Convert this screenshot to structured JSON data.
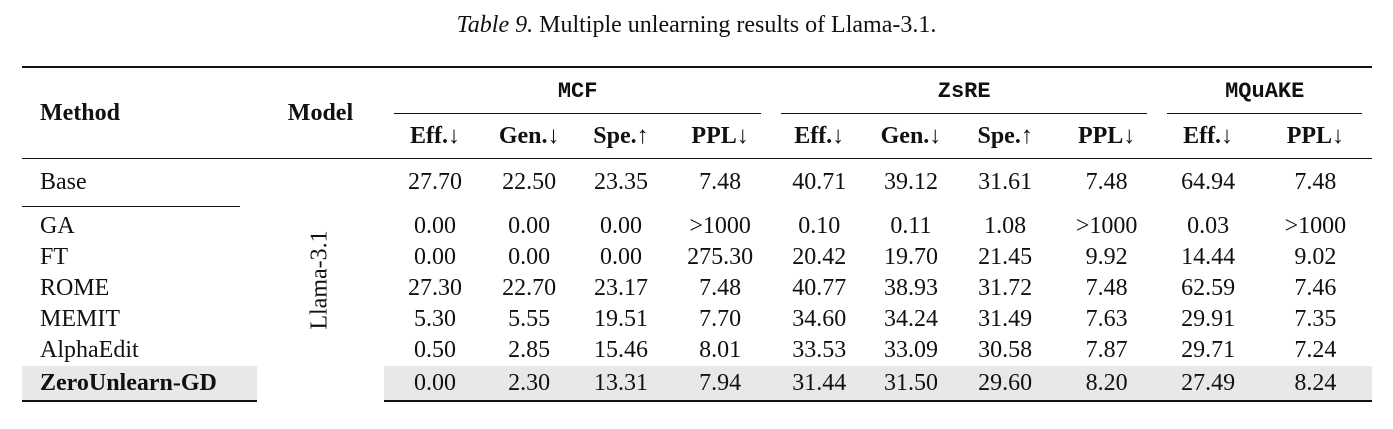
{
  "caption": {
    "label": "Table 9.",
    "text": "Multiple unlearning results of Llama-3.1."
  },
  "header": {
    "method": "Method",
    "model": "Model",
    "groups": [
      "MCF",
      "ZsRE",
      "MQuAKE"
    ],
    "sub": [
      "Eff.↓",
      "Gen.↓",
      "Spe.↑",
      "PPL↓",
      "Eff.↓",
      "Gen.↓",
      "Spe.↑",
      "PPL↓",
      "Eff.↓",
      "PPL↓"
    ]
  },
  "model_name": "Llama-3.1",
  "rows": [
    {
      "method": "Base",
      "values": [
        "27.70",
        "22.50",
        "23.35",
        "7.48",
        "40.71",
        "39.12",
        "31.61",
        "7.48",
        "64.94",
        "7.48"
      ]
    },
    {
      "method": "GA",
      "values": [
        "0.00",
        "0.00",
        "0.00",
        ">1000",
        "0.10",
        "0.11",
        "1.08",
        ">1000",
        "0.03",
        ">1000"
      ]
    },
    {
      "method": "FT",
      "values": [
        "0.00",
        "0.00",
        "0.00",
        "275.30",
        "20.42",
        "19.70",
        "21.45",
        "9.92",
        "14.44",
        "9.02"
      ]
    },
    {
      "method": "ROME",
      "values": [
        "27.30",
        "22.70",
        "23.17",
        "7.48",
        "40.77",
        "38.93",
        "31.72",
        "7.48",
        "62.59",
        "7.46"
      ]
    },
    {
      "method": "MEMIT",
      "values": [
        "5.30",
        "5.55",
        "19.51",
        "7.70",
        "34.60",
        "34.24",
        "31.49",
        "7.63",
        "29.91",
        "7.35"
      ]
    },
    {
      "method": "AlphaEdit",
      "values": [
        "0.50",
        "2.85",
        "15.46",
        "8.01",
        "33.53",
        "33.09",
        "30.58",
        "7.87",
        "29.71",
        "7.24"
      ]
    },
    {
      "method": "ZeroUnlearn-GD",
      "values": [
        "0.00",
        "2.30",
        "13.31",
        "7.94",
        "31.44",
        "31.50",
        "29.60",
        "8.20",
        "27.49",
        "8.24"
      ]
    }
  ]
}
